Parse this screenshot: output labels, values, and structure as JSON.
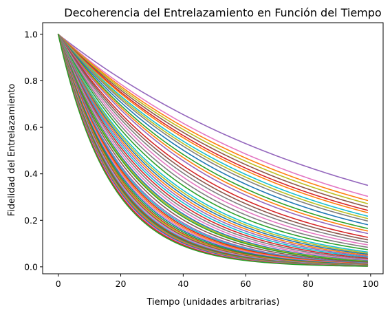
{
  "chart_data": {
    "type": "line",
    "title": "Decoherencia del Entrelazamiento en Función del Tiempo",
    "xlabel": "Tiempo (unidades arbitrarias)",
    "ylabel": "Fidelidad del Entrelazamiento",
    "xlim": [
      -5,
      104
    ],
    "ylim": [
      -0.03,
      1.05
    ],
    "xticks": [
      0,
      20,
      40,
      60,
      80,
      100
    ],
    "yticks": [
      0.0,
      0.2,
      0.4,
      0.6,
      0.8,
      1.0
    ],
    "xtick_labels": [
      "0",
      "20",
      "40",
      "60",
      "80",
      "100"
    ],
    "ytick_labels": [
      "0.0",
      "0.2",
      "0.4",
      "0.6",
      "0.8",
      "1.0"
    ],
    "grid": false,
    "legend": "none",
    "model": "y = exp(-t / tau)",
    "t_start": 0,
    "t_end": 99,
    "t_step": 1,
    "series": [
      {
        "tau": 94.5,
        "color": "#9467bd"
      },
      {
        "tau": 83,
        "color": "#e377c2"
      },
      {
        "tau": 79,
        "color": "#ff7f0e"
      },
      {
        "tau": 76,
        "color": "#bcbd22"
      },
      {
        "tau": 73,
        "color": "#8c564b"
      },
      {
        "tau": 70,
        "color": "#d62728"
      },
      {
        "tau": 68,
        "color": "#ff7f0e"
      },
      {
        "tau": 65,
        "color": "#17becf"
      },
      {
        "tau": 63,
        "color": "#bcbd22"
      },
      {
        "tau": 61,
        "color": "#7f7f7f"
      },
      {
        "tau": 58,
        "color": "#1f77b4"
      },
      {
        "tau": 55,
        "color": "#2ca02c"
      },
      {
        "tau": 53,
        "color": "#ff7f0e"
      },
      {
        "tau": 51,
        "color": "#9467bd"
      },
      {
        "tau": 48,
        "color": "#d62728"
      },
      {
        "tau": 46,
        "color": "#8c564b"
      },
      {
        "tau": 44,
        "color": "#7f7f7f"
      },
      {
        "tau": 42,
        "color": "#e377c2"
      },
      {
        "tau": 40,
        "color": "#7f7f7f"
      },
      {
        "tau": 38,
        "color": "#2ca02c"
      },
      {
        "tau": 36,
        "color": "#17becf"
      },
      {
        "tau": 35,
        "color": "#bcbd22"
      },
      {
        "tau": 34,
        "color": "#1f77b4"
      },
      {
        "tau": 33,
        "color": "#ff7f0e"
      },
      {
        "tau": 32,
        "color": "#9467bd"
      },
      {
        "tau": 31,
        "color": "#17becf"
      },
      {
        "tau": 30,
        "color": "#d62728"
      },
      {
        "tau": 29,
        "color": "#7f7f7f"
      },
      {
        "tau": 28,
        "color": "#e377c2"
      },
      {
        "tau": 27,
        "color": "#1f77b4"
      },
      {
        "tau": 26.5,
        "color": "#bcbd22"
      },
      {
        "tau": 26,
        "color": "#2ca02c"
      },
      {
        "tau": 25,
        "color": "#8c564b"
      },
      {
        "tau": 24,
        "color": "#9467bd"
      },
      {
        "tau": 23.5,
        "color": "#17becf"
      },
      {
        "tau": 23,
        "color": "#d62728"
      },
      {
        "tau": 22.5,
        "color": "#ff7f0e"
      },
      {
        "tau": 22,
        "color": "#e377c2"
      },
      {
        "tau": 21.5,
        "color": "#1f77b4"
      },
      {
        "tau": 21,
        "color": "#2ca02c"
      },
      {
        "tau": 20.5,
        "color": "#d62728"
      },
      {
        "tau": 20.2,
        "color": "#bcbd22"
      },
      {
        "tau": 19.8,
        "color": "#8c564b"
      },
      {
        "tau": 19.4,
        "color": "#e377c2"
      },
      {
        "tau": 19.0,
        "color": "#17becf"
      },
      {
        "tau": 18.7,
        "color": "#d62728"
      },
      {
        "tau": 18.4,
        "color": "#2ca02c"
      },
      {
        "tau": 18.1,
        "color": "#7f7f7f"
      },
      {
        "tau": 17.8,
        "color": "#ff7f0e"
      },
      {
        "tau": 17.5,
        "color": "#1f77b4"
      },
      {
        "tau": 17.2,
        "color": "#e377c2"
      },
      {
        "tau": 16.9,
        "color": "#d62728"
      },
      {
        "tau": 16.6,
        "color": "#2ca02c"
      }
    ]
  }
}
